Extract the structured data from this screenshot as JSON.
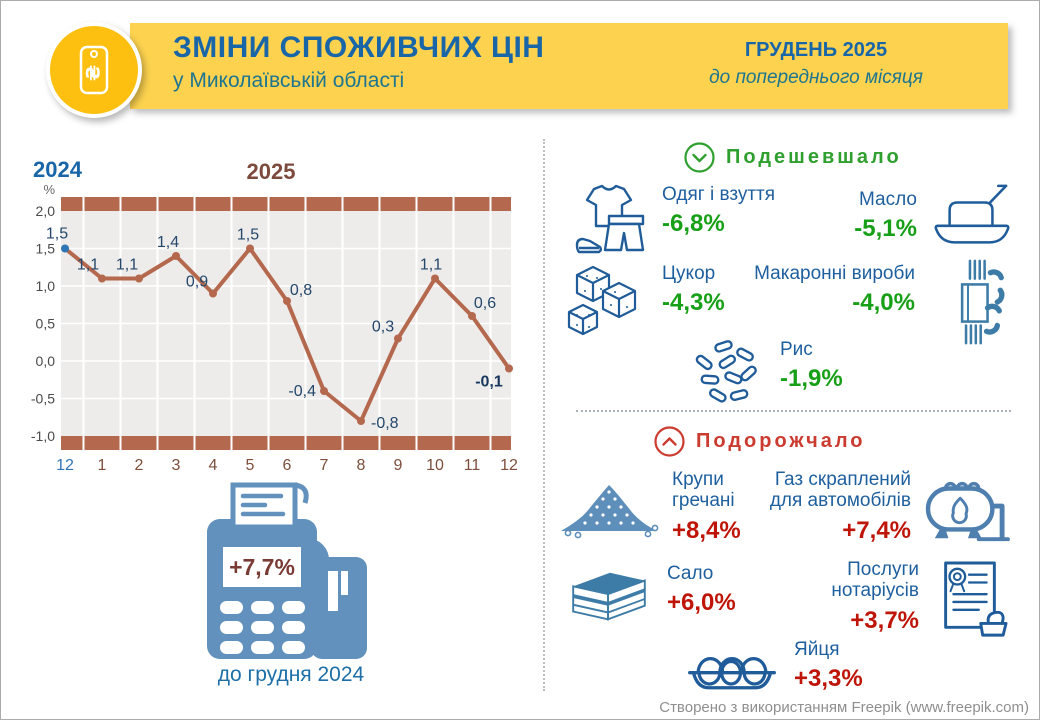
{
  "header": {
    "title": "ЗМІНИ СПОЖИВЧИХ ЦІН",
    "subtitle": "у Миколаївській області",
    "period": "ГРУДЕНЬ 2025",
    "period_note": "до попереднього місяця",
    "badge_icon": "hryvnia-price-tag-icon",
    "banner_color": "#FCD24F",
    "badge_color": "#FDC010"
  },
  "chart_data": {
    "type": "line",
    "title": "Зміни споживчих цін, % до попереднього місяця",
    "year_left": "2024",
    "year_right": "2025",
    "unit": "%",
    "x_labels": [
      "12",
      "1",
      "2",
      "3",
      "4",
      "5",
      "6",
      "7",
      "8",
      "9",
      "10",
      "11",
      "12"
    ],
    "values": [
      1.5,
      1.1,
      1.1,
      1.4,
      0.9,
      1.5,
      0.8,
      -0.4,
      -0.8,
      0.3,
      1.1,
      0.6,
      -0.1
    ],
    "point_labels": [
      "1,5",
      "1,1",
      "1,1",
      "1,4",
      "0,9",
      "1,5",
      "0,8",
      "-0,4",
      "-0,8",
      "0,3",
      "1,1",
      "0,6",
      "-0,1"
    ],
    "y_ticks": [
      "2,0",
      "1,5",
      "1,0",
      "0,5",
      "0,0",
      "-0,5",
      "-1,0"
    ],
    "ylim": [
      -1.0,
      2.0
    ],
    "grid": true,
    "line_color": "#B4684D",
    "band_color": "#B4684D",
    "first_point_color": "#2E75B6",
    "label_color": "#24476B",
    "last_label_color": "#17375E",
    "x_first_color": "#2E75B6",
    "x_color": "#7D4F3C",
    "plot_bg": "#EDECEA"
  },
  "annual": {
    "value": "+7,7%",
    "caption": "до грудня 2024",
    "icon": "pos-terminal-icon"
  },
  "cheaper": {
    "header": "Подешевшало",
    "icon": "chevron-down-circle-icon",
    "color": "#2FA02F",
    "items": [
      {
        "name": "Одяг і взуття",
        "value": "-6,8%",
        "icon": "clothes-icon"
      },
      {
        "name": "Масло",
        "value": "-5,1%",
        "icon": "butter-icon"
      },
      {
        "name": "Цукор",
        "value": "-4,3%",
        "icon": "sugar-icon"
      },
      {
        "name": "Макаронні вироби",
        "value": "-4,0%",
        "icon": "pasta-icon"
      },
      {
        "name": "Рис",
        "value": "-1,9%",
        "icon": "rice-icon"
      }
    ]
  },
  "pricier": {
    "header": "Подорожчало",
    "icon": "chevron-up-circle-icon",
    "color": "#CC3B2F",
    "items": [
      {
        "name": "Крупи гречані",
        "value": "+8,4%",
        "icon": "buckwheat-icon"
      },
      {
        "name": "Газ скраплений для автомобілів",
        "value": "+7,4%",
        "icon": "gas-tank-icon"
      },
      {
        "name": "Сало",
        "value": "+6,0%",
        "icon": "salo-icon"
      },
      {
        "name": "Послуги нотаріусів",
        "value": "+3,7%",
        "icon": "notary-icon"
      },
      {
        "name": "Яйця",
        "value": "+3,3%",
        "icon": "eggs-icon"
      }
    ]
  },
  "footer": {
    "credit": "Створено з використанням Freepik (www.freepik.com)"
  }
}
